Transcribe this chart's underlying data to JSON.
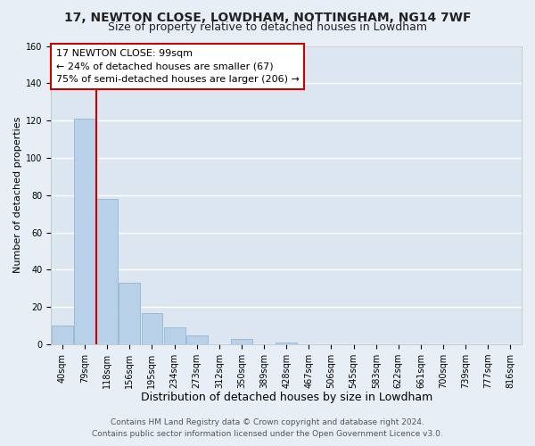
{
  "title1": "17, NEWTON CLOSE, LOWDHAM, NOTTINGHAM, NG14 7WF",
  "title2": "Size of property relative to detached houses in Lowdham",
  "xlabel": "Distribution of detached houses by size in Lowdham",
  "ylabel": "Number of detached properties",
  "bin_labels": [
    "40sqm",
    "79sqm",
    "118sqm",
    "156sqm",
    "195sqm",
    "234sqm",
    "273sqm",
    "312sqm",
    "350sqm",
    "389sqm",
    "428sqm",
    "467sqm",
    "506sqm",
    "545sqm",
    "583sqm",
    "622sqm",
    "661sqm",
    "700sqm",
    "739sqm",
    "777sqm",
    "816sqm"
  ],
  "bar_heights": [
    10,
    121,
    78,
    33,
    17,
    9,
    5,
    0,
    3,
    0,
    1,
    0,
    0,
    0,
    0,
    0,
    0,
    0,
    0,
    0,
    0
  ],
  "bar_color": "#b8d0e8",
  "bar_edge_color": "#8fb8d8",
  "vline_color": "#cc0000",
  "annotation_title": "17 NEWTON CLOSE: 99sqm",
  "annotation_line1": "← 24% of detached houses are smaller (67)",
  "annotation_line2": "75% of semi-detached houses are larger (206) →",
  "annotation_box_facecolor": "#ffffff",
  "annotation_box_edgecolor": "#cc0000",
  "ylim": [
    0,
    160
  ],
  "yticks": [
    0,
    20,
    40,
    60,
    80,
    100,
    120,
    140,
    160
  ],
  "footer1": "Contains HM Land Registry data © Crown copyright and database right 2024.",
  "footer2": "Contains public sector information licensed under the Open Government Licence v3.0.",
  "bg_color": "#e8eef5",
  "plot_bg_color": "#dce6f0",
  "grid_color": "#ffffff",
  "title1_fontsize": 10,
  "title2_fontsize": 9,
  "xlabel_fontsize": 9,
  "ylabel_fontsize": 8,
  "tick_fontsize": 7,
  "annotation_fontsize": 8,
  "footer_fontsize": 6.5
}
